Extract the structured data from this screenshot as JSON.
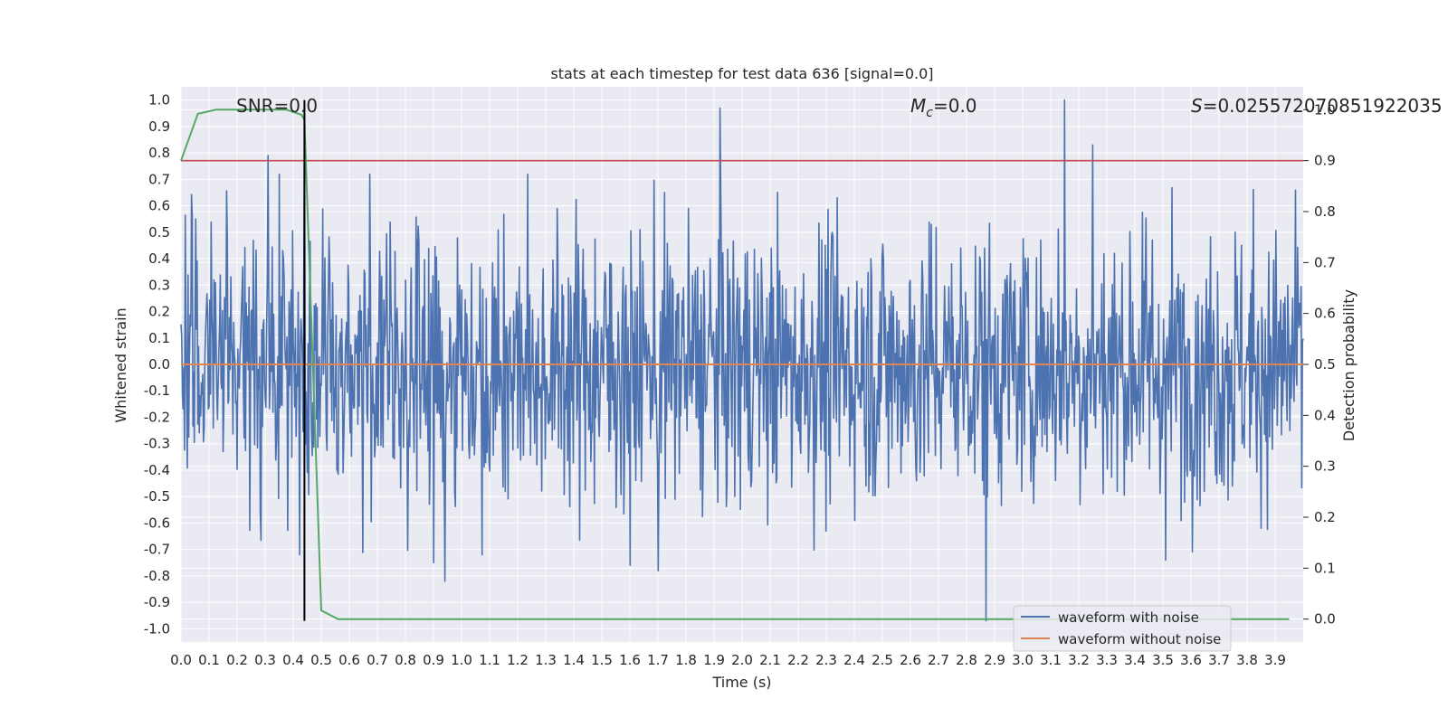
{
  "chart_data": {
    "type": "line",
    "title": "stats at each timestep for test data 636 [signal=0.0]",
    "xlabel": "Time (s)",
    "ylabel_left": "Whitened strain",
    "ylabel_right": "Detection probability",
    "xlim": [
      0.0,
      4.0
    ],
    "ylim_left": [
      -1.05,
      1.05
    ],
    "ylim_right": [
      -0.045,
      1.045
    ],
    "grid": true,
    "x_ticks": [
      "0.0",
      "0.1",
      "0.2",
      "0.3",
      "0.4",
      "0.5",
      "0.6",
      "0.7",
      "0.8",
      "0.9",
      "1.0",
      "1.1",
      "1.2",
      "1.3",
      "1.4",
      "1.5",
      "1.6",
      "1.7",
      "1.8",
      "1.9",
      "2.0",
      "2.1",
      "2.2",
      "2.3",
      "2.4",
      "2.5",
      "2.6",
      "2.7",
      "2.8",
      "2.9",
      "3.0",
      "3.1",
      "3.2",
      "3.3",
      "3.4",
      "3.5",
      "3.6",
      "3.7",
      "3.8",
      "3.9"
    ],
    "y_ticks_left": [
      "1.0",
      "0.9",
      "0.8",
      "0.7",
      "0.6",
      "0.5",
      "0.4",
      "0.3",
      "0.2",
      "0.1",
      "0.0",
      "-0.1",
      "-0.2",
      "-0.3",
      "-0.4",
      "-0.5",
      "-0.6",
      "-0.7",
      "-0.8",
      "-0.9",
      "-1.0"
    ],
    "y_ticks_right": [
      "1.0",
      "0.9",
      "0.8",
      "0.7",
      "0.6",
      "0.5",
      "0.4",
      "0.3",
      "0.2",
      "0.1",
      "0.0"
    ],
    "annotations": {
      "snr": "SNR=0.0",
      "mc_symbol": "M",
      "mc_subscript": "c",
      "mc_value": "=0.0",
      "s_symbol": "S",
      "s_value": "=0.025572070851922035"
    },
    "legend": {
      "placement": "lower-right",
      "entries": [
        {
          "label": "waveform with noise",
          "color": "#4c72b0"
        },
        {
          "label": "waveform without noise",
          "color": "#dd8452"
        }
      ]
    },
    "series": [
      {
        "name": "waveform with noise",
        "axis": "left",
        "color": "#4c72b0",
        "style": "dense-noise",
        "points": 1600,
        "typical_amplitude": 0.42,
        "spikes": [
          {
            "x": 1.92,
            "y": 0.97
          },
          {
            "x": 3.15,
            "y": 1.0
          },
          {
            "x": 3.25,
            "y": 0.83
          },
          {
            "x": 2.87,
            "y": -0.97
          },
          {
            "x": 0.94,
            "y": -0.82
          },
          {
            "x": 0.31,
            "y": 0.79
          },
          {
            "x": 0.44,
            "y": 0.98
          },
          {
            "x": 0.9,
            "y": -0.75
          },
          {
            "x": 1.6,
            "y": -0.76
          },
          {
            "x": 1.7,
            "y": -0.78
          },
          {
            "x": 3.51,
            "y": -0.74
          }
        ]
      },
      {
        "name": "waveform without noise",
        "axis": "left",
        "color": "#dd8452",
        "x": [
          0.0,
          4.0
        ],
        "y": [
          0.0,
          0.0
        ]
      },
      {
        "name": "detection probability",
        "axis": "right",
        "color": "#55a868",
        "x": [
          0.0,
          0.06,
          0.125,
          0.19,
          0.25,
          0.32,
          0.375,
          0.43,
          0.44,
          0.5,
          0.56,
          0.625,
          1.0,
          2.0,
          3.0,
          3.95
        ],
        "y": [
          0.9,
          0.992,
          1.0,
          1.0,
          1.0,
          1.0,
          1.0,
          0.99,
          0.98,
          0.017,
          0.0,
          0.0,
          0.0,
          0.0,
          0.0,
          0.0
        ]
      }
    ],
    "reference_lines": [
      {
        "name": "threshold",
        "axis": "right",
        "orientation": "horizontal",
        "value": 0.9,
        "color": "#c44e52"
      },
      {
        "name": "detection time",
        "axis": "left",
        "orientation": "vertical",
        "x": 0.44,
        "y_range": [
          -0.97,
          1.0
        ],
        "color": "#000000"
      }
    ]
  }
}
